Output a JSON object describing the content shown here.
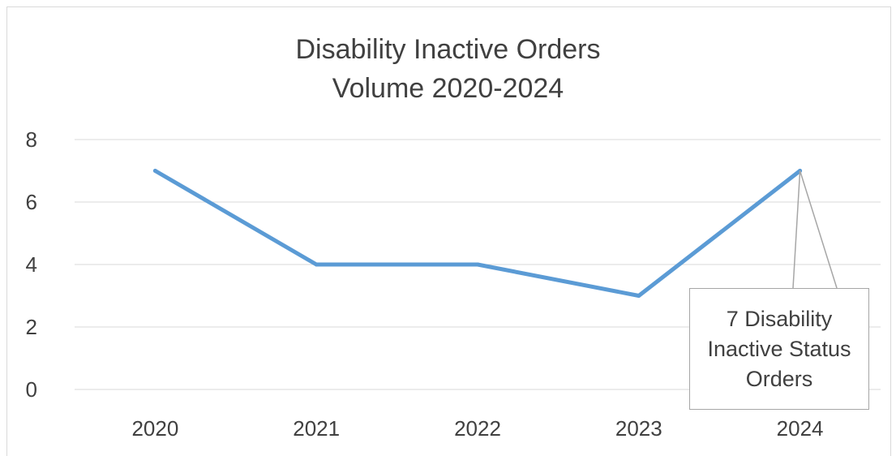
{
  "chart_data": {
    "type": "line",
    "title_line1": "Disability Inactive Orders",
    "title_line2": "Volume 2020-2024",
    "categories": [
      "2020",
      "2021",
      "2022",
      "2023",
      "2024"
    ],
    "values": [
      7,
      4,
      4,
      3,
      7
    ],
    "ylim": [
      0,
      8
    ],
    "y_ticks": [
      "0",
      "2",
      "4",
      "6",
      "8"
    ],
    "grid": true,
    "legend": "none",
    "series_color": "#5b9bd5",
    "annotation": {
      "text": "7 Disability Inactive Status Orders",
      "category": "2024",
      "value": 7
    }
  }
}
